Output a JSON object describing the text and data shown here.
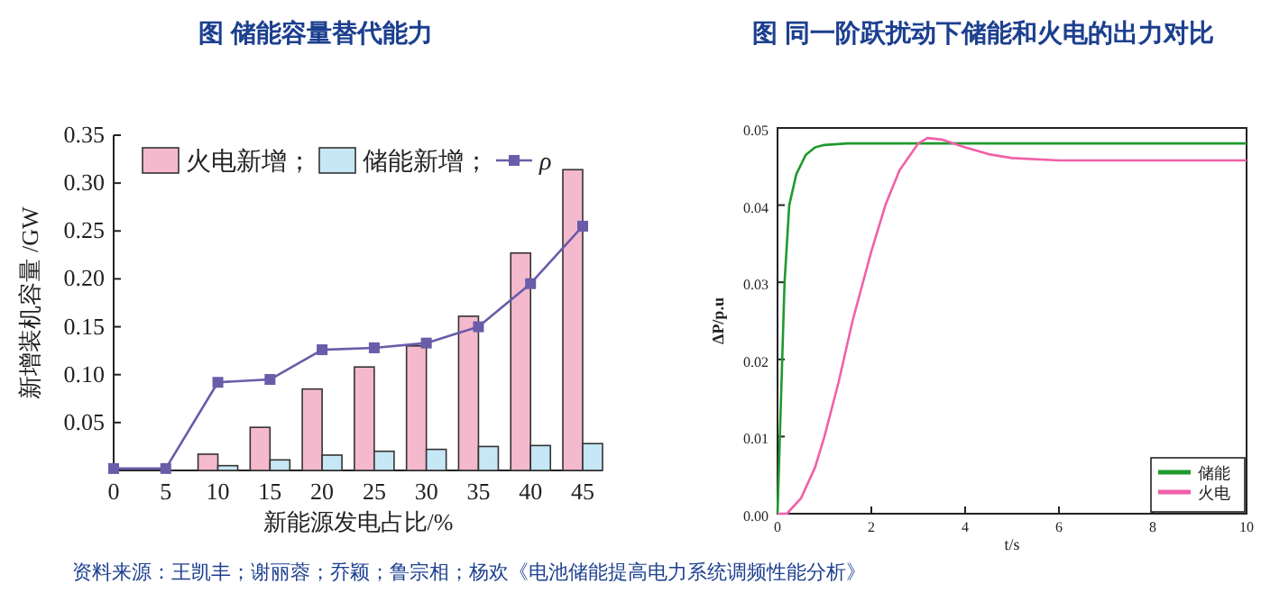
{
  "chart_data": [
    {
      "type": "bar",
      "title": "图 储能容量替代能力",
      "xlabel": "新能源发电占比/%",
      "ylabel": "新增装机容量 /GW",
      "categories": [
        "0",
        "5",
        "10",
        "15",
        "20",
        "25",
        "30",
        "35",
        "40",
        "45"
      ],
      "series": [
        {
          "name": "火电新增；",
          "color": "#f5b9cd",
          "values": [
            0,
            0,
            0.017,
            0.045,
            0.085,
            0.108,
            0.13,
            0.161,
            0.227,
            0.314
          ]
        },
        {
          "name": "储能新增；",
          "color": "#c6e7f5",
          "values": [
            0,
            0,
            0.005,
            0.011,
            0.016,
            0.02,
            0.022,
            0.025,
            0.026,
            0.028
          ]
        },
        {
          "name": "ρ",
          "type": "line",
          "marker": "square",
          "color": "#6a5ca8",
          "values": [
            0.002,
            0.002,
            0.092,
            0.095,
            0.126,
            0.128,
            0.133,
            0.15,
            0.195,
            0.255
          ]
        }
      ],
      "ylim": [
        0,
        0.35
      ],
      "yticks": [
        0.05,
        {
          "value": 0.1,
          "label": "0.10"
        },
        0.15,
        {
          "value": 0.2,
          "label": "0.20"
        },
        0.25,
        {
          "value": 0.3,
          "label": "0.30"
        },
        0.35
      ],
      "legend": "top left",
      "annotations": [
        "资料来源：王凯丰；谢丽蓉；乔颖；鲁宗相；杨欢《电池储能提高电力系统调频性能分析》"
      ]
    },
    {
      "type": "line",
      "title": "图 同一阶跃扰动下储能和火电的出力对比",
      "xlabel": "t/s",
      "ylabel": "ΔP/p.u",
      "series": [
        {
          "name": "储能",
          "color": "#1f9a2e",
          "x": [
            0,
            0.05,
            0.1,
            0.15,
            0.25,
            0.4,
            0.6,
            0.8,
            1.0,
            1.5,
            10
          ],
          "values": [
            0,
            0.01,
            0.02,
            0.03,
            0.04,
            0.044,
            0.0465,
            0.0475,
            0.0478,
            0.048,
            0.048
          ]
        },
        {
          "name": "火电",
          "color": "#f060a8",
          "x": [
            0,
            0.2,
            0.5,
            0.8,
            1.0,
            1.3,
            1.6,
            2.0,
            2.3,
            2.6,
            3.0,
            3.2,
            3.5,
            4.0,
            4.5,
            5.0,
            6,
            7,
            10
          ],
          "values": [
            0,
            0,
            0.002,
            0.006,
            0.01,
            0.017,
            0.025,
            0.034,
            0.04,
            0.0445,
            0.048,
            0.0487,
            0.0485,
            0.0475,
            0.0466,
            0.0461,
            0.0458,
            0.0458,
            0.0458
          ]
        }
      ],
      "xlim": [
        0,
        10
      ],
      "xticks": [
        0,
        2,
        4,
        6,
        8,
        10
      ],
      "ylim": [
        0,
        0.05
      ],
      "yticks": [
        {
          "value": 0,
          "label": "0.00"
        },
        {
          "value": 0.01,
          "label": "0.01"
        },
        {
          "value": 0.02,
          "label": "0.02"
        },
        {
          "value": 0.03,
          "label": "0.03"
        },
        {
          "value": 0.04,
          "label": "0.04"
        },
        {
          "value": 0.05,
          "label": "0.05"
        }
      ],
      "legend": "bottom right"
    }
  ]
}
